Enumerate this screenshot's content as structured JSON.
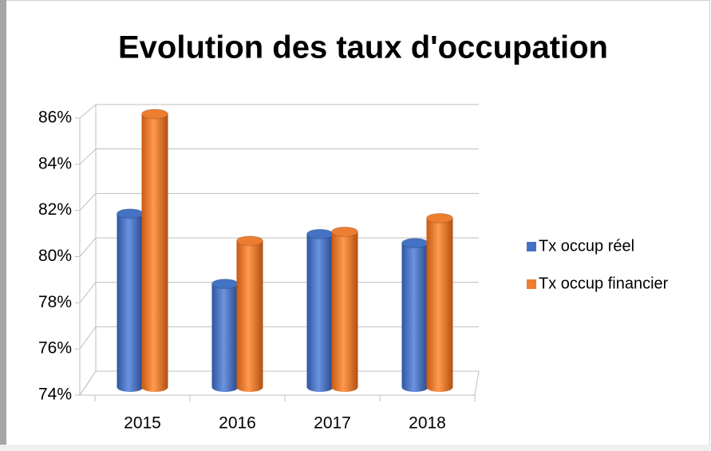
{
  "chart_data": {
    "type": "bar3d",
    "title": "Evolution des taux d'occupation",
    "categories": [
      "2015",
      "2016",
      "2017",
      "2018"
    ],
    "series": [
      {
        "name": "Tx occup réel",
        "color": "#4472c4",
        "values": [
          81.2,
          78.1,
          80.3,
          79.9
        ]
      },
      {
        "name": "Tx occup financier",
        "color": "#ed7d31",
        "values": [
          85.6,
          80.0,
          80.4,
          81.0
        ]
      }
    ],
    "ylim": [
      74,
      86
    ],
    "yticks": [
      {
        "value": 74,
        "label": "74%"
      },
      {
        "value": 76,
        "label": "76%"
      },
      {
        "value": 78,
        "label": "78%"
      },
      {
        "value": 80,
        "label": "80%"
      },
      {
        "value": 82,
        "label": "82%"
      },
      {
        "value": 84,
        "label": "84%"
      },
      {
        "value": 86,
        "label": "86%"
      }
    ],
    "grid": true,
    "legend": "right"
  }
}
